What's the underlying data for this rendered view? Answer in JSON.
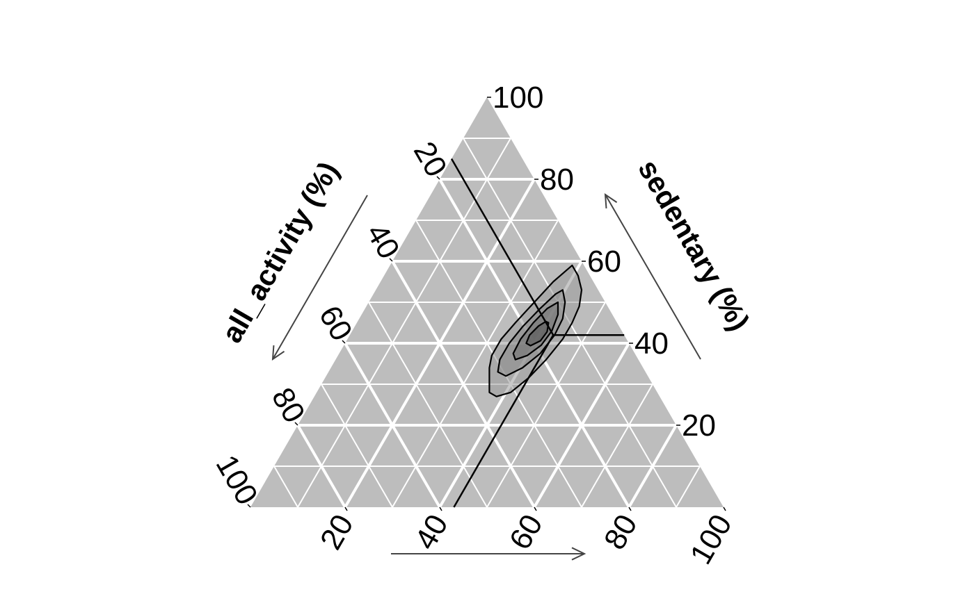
{
  "chart_data": {
    "type": "ternary-density",
    "axes": {
      "left": {
        "label": "all_activity (%)",
        "ticks": [
          "20",
          "40",
          "60",
          "80",
          "100"
        ]
      },
      "right": {
        "label": "sedentary (%)",
        "ticks": [
          "20",
          "40",
          "60",
          "80",
          "100"
        ]
      },
      "bottom": {
        "label": "",
        "ticks": [
          "20",
          "40",
          "60",
          "80",
          "100"
        ]
      }
    },
    "range": [
      0,
      100
    ],
    "grid": {
      "minor_step": 10,
      "major_step": 20
    },
    "reference_point": {
      "bottom": 43,
      "sedentary": 42,
      "all_activity": 15
    },
    "density_contours": [
      {
        "level": 1,
        "fill": "#9a9a9a",
        "points": [
          [
            38.5,
            59
          ],
          [
            41,
            56.5
          ],
          [
            43.5,
            53
          ],
          [
            45,
            49
          ],
          [
            45.5,
            45
          ],
          [
            45.5,
            41
          ],
          [
            44.5,
            36
          ],
          [
            43,
            31.5
          ],
          [
            41,
            28
          ],
          [
            38.5,
            27
          ],
          [
            36.5,
            28
          ],
          [
            35,
            31
          ],
          [
            33.5,
            34
          ],
          [
            32.5,
            37
          ],
          [
            32.5,
            41
          ],
          [
            33.5,
            45
          ],
          [
            35,
            50
          ],
          [
            36.5,
            55
          ],
          [
            38,
            58
          ]
        ]
      },
      {
        "level": 2,
        "fill": "#8a8a8a",
        "points": [
          [
            39.5,
            53
          ],
          [
            41.5,
            50
          ],
          [
            43,
            46
          ],
          [
            43.3,
            42
          ],
          [
            42.5,
            37.5
          ],
          [
            40.5,
            34
          ],
          [
            38,
            32
          ],
          [
            35.8,
            33
          ],
          [
            34.7,
            36
          ],
          [
            34.7,
            40
          ],
          [
            35.5,
            44
          ],
          [
            37,
            48.5
          ],
          [
            38.5,
            52
          ]
        ]
      },
      {
        "level": 3,
        "fill": "#707070",
        "points": [
          [
            40,
            50
          ],
          [
            41.5,
            47
          ],
          [
            42.2,
            43
          ],
          [
            41.7,
            39.5
          ],
          [
            40,
            37
          ],
          [
            38,
            36
          ],
          [
            36.8,
            37.5
          ],
          [
            36.6,
            41
          ],
          [
            37.3,
            45
          ],
          [
            38.5,
            48.5
          ]
        ]
      },
      {
        "level": 4,
        "fill": "#555555",
        "points": [
          [
            40.5,
            45
          ],
          [
            41.3,
            42.8
          ],
          [
            41,
            40.6
          ],
          [
            39.5,
            39.4
          ],
          [
            38.3,
            40
          ],
          [
            38,
            42
          ],
          [
            38.8,
            44.2
          ],
          [
            39.8,
            45.3
          ]
        ]
      }
    ]
  }
}
